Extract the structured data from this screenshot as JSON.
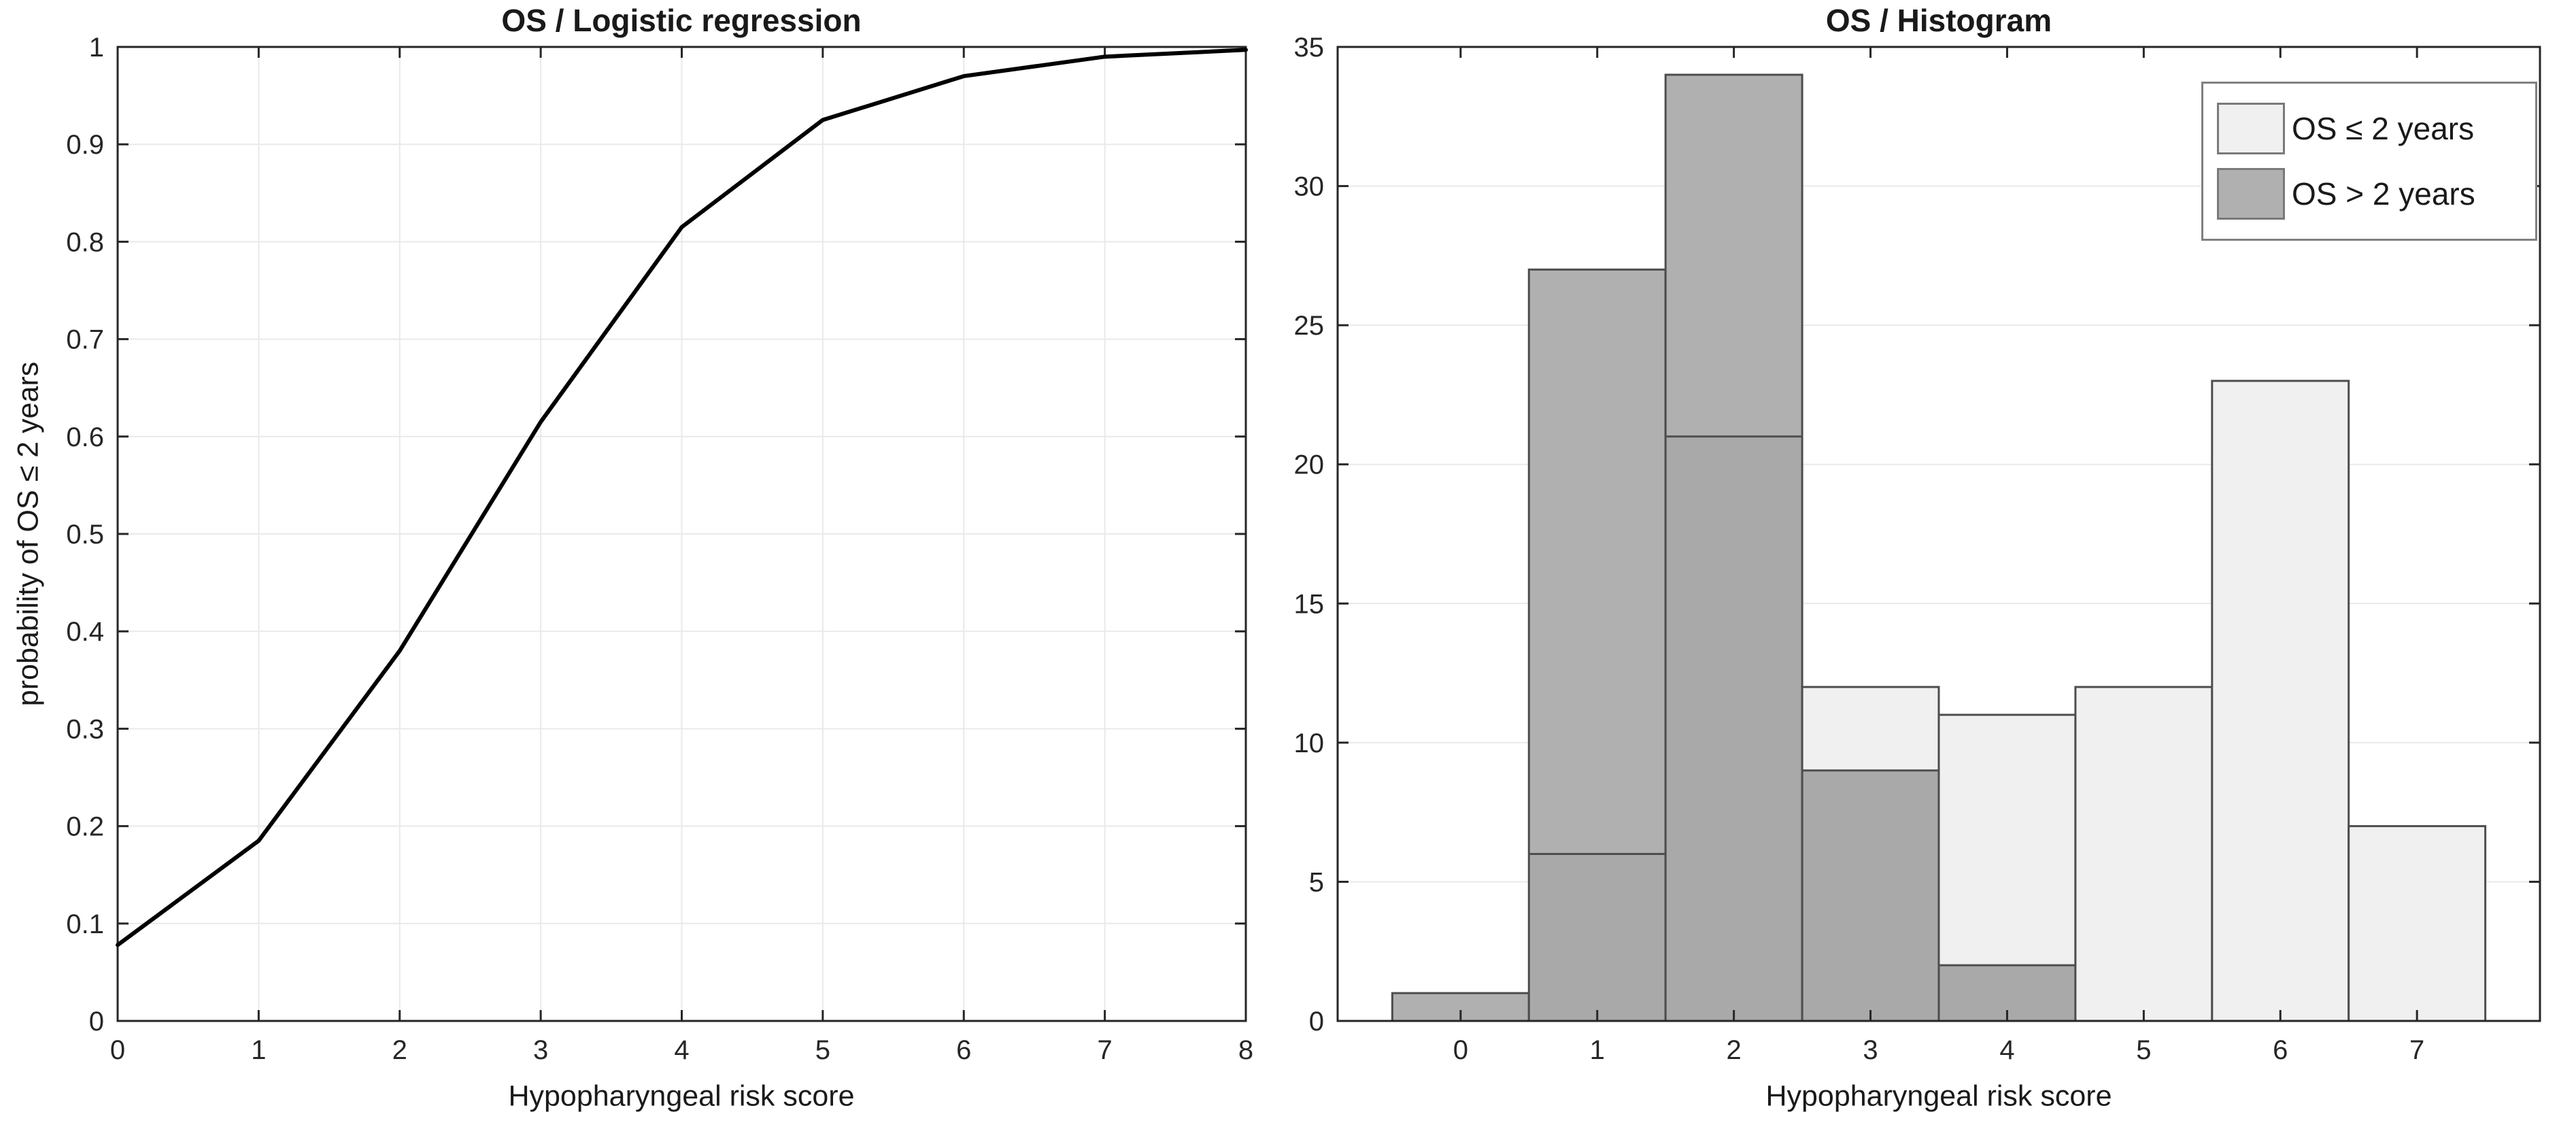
{
  "figure": {
    "background": "#ffffff",
    "axis_color": "#262626",
    "grid_color": "#e9e9e9",
    "text_color": "#1a1a1a"
  },
  "chart_data": [
    {
      "type": "line",
      "title": "OS / Logistic regression",
      "xlabel": "Hypopharyngeal risk score",
      "ylabel": "probability of OS ≤ 2 years",
      "x": [
        0,
        1,
        2,
        3,
        4,
        5,
        6,
        7,
        8
      ],
      "y": [
        0.078,
        0.185,
        0.38,
        0.615,
        0.815,
        0.925,
        0.97,
        0.99,
        0.997
      ],
      "xlim": [
        0,
        8
      ],
      "ylim": [
        0,
        1
      ],
      "xtick_labels": [
        "0",
        "1",
        "2",
        "3",
        "4",
        "5",
        "6",
        "7",
        "8"
      ],
      "ytick_labels": [
        "0",
        "0.1",
        "0.2",
        "0.3",
        "0.4",
        "0.5",
        "0.6",
        "0.7",
        "0.8",
        "0.9",
        "1"
      ],
      "grid": "both",
      "legend": null,
      "line_color": "#000000",
      "line_width": 6
    },
    {
      "type": "bar",
      "subtype": "overlaid-histogram",
      "title": "OS / Histogram",
      "xlabel": "Hypopharyngeal risk score",
      "ylabel": "",
      "categories": [
        "0",
        "1",
        "2",
        "3",
        "4",
        "5",
        "6",
        "7"
      ],
      "series": [
        {
          "name": "OS ≤ 2 years",
          "values": [
            0,
            6,
            21,
            12,
            11,
            12,
            23,
            7
          ],
          "color": "#f0f0f0"
        },
        {
          "name": "OS > 2 years",
          "values": [
            1,
            27,
            34,
            9,
            2,
            0,
            0,
            0
          ],
          "color": "#b0b0b0"
        }
      ],
      "overlap_color": "#a9a9a9",
      "edge_color": "#4d4d4d",
      "xlim": [
        -0.9,
        7.9
      ],
      "ylim": [
        0,
        35
      ],
      "xtick_labels": [
        "0",
        "1",
        "2",
        "3",
        "4",
        "5",
        "6",
        "7"
      ],
      "ytick_labels": [
        "0",
        "5",
        "10",
        "15",
        "20",
        "25",
        "30",
        "35"
      ],
      "grid": "horizontal",
      "legend_position": "top-right"
    }
  ]
}
